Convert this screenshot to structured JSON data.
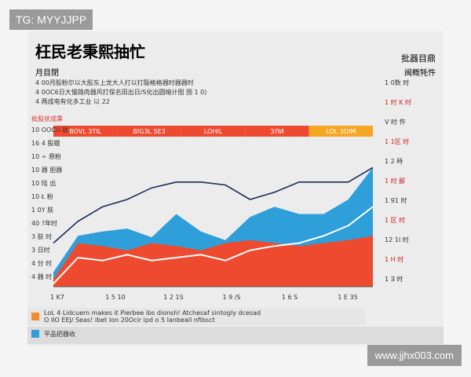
{
  "watermark": "TG: MYYJJPP",
  "url": "www.jjhx003.com",
  "header": {
    "title": "枉民老秉熙抽忙",
    "right_title": "批器目鼎",
    "subtitle": "月目閉",
    "right_subtitle": "闽概牦忤"
  },
  "notes": [
    "4 00月股粉尔以大股东上龙大人打以打殷格格器时器器时",
    "4 0OC6日大慢路肉器风打保名田出日/S化出圆暗计图 国 1 0)",
    "4 两成电有化多工业            以 22"
  ],
  "band_title": "批股状成秉",
  "band_labels": [
    "BOVL 3TIL",
    "BIG3L SE3",
    "LOHIL",
    "ЗЛИ",
    "LOL 3OIM"
  ],
  "left_labels": [
    "10 OOCU 狀",
    "16 4 股蛾",
    "10 ÷ 悬粉",
    "10 器 胆器",
    "10 陆 出",
    "10 Ł 粉",
    "1 0Y 肤",
    "40 ?年时",
    "3 肤 时",
    "3 日时",
    "4 分 时",
    "4 器 时"
  ],
  "right_labels": [
    "1 0数 时",
    "1 时 K 时",
    "V 时 忤",
    "1 1区 时",
    "1 2 時",
    "1 时 鄙",
    "1 91 时",
    "1 区 时",
    "12 1I 时",
    "1 H 时",
    "1 ∃ 时"
  ],
  "x_labels": [
    "1 K7",
    "1 5 10",
    "1 2 1S",
    "1 9 /S",
    "1 6 S",
    "1 E 35"
  ],
  "footer": [
    "LoL 4 Lidcuern makes it Pierbee ibs dionsh! Atchesaf sintogly dcesad",
    "O IIO EEJ/ Seas! ibet Ion 20Ocir ipd o 5 Ianbeall nfibsct",
    "平品把器收"
  ],
  "chart_data": {
    "type": "area",
    "categories": [
      null,
      null,
      null,
      null,
      null,
      null,
      null,
      null,
      null,
      null,
      null,
      null,
      null,
      null
    ],
    "ylim": [
      0,
      100
    ],
    "series": [
      {
        "kind": "area",
        "color": "#2e9fd8",
        "values": [
          10,
          35,
          38,
          40,
          34,
          50,
          38,
          32,
          48,
          55,
          50,
          50,
          60,
          82
        ]
      },
      {
        "kind": "area",
        "color": "#ee4a30",
        "values": [
          5,
          30,
          28,
          25,
          30,
          28,
          25,
          30,
          32,
          30,
          28,
          30,
          32,
          35
        ]
      },
      {
        "kind": "line",
        "color": "#ffffff",
        "values": [
          2,
          20,
          18,
          22,
          18,
          20,
          22,
          18,
          25,
          28,
          30,
          35,
          42,
          55
        ]
      },
      {
        "kind": "line",
        "color": "#1c2a5c",
        "values": [
          30,
          45,
          55,
          60,
          68,
          72,
          72,
          70,
          60,
          65,
          72,
          72,
          72,
          82
        ]
      }
    ]
  }
}
